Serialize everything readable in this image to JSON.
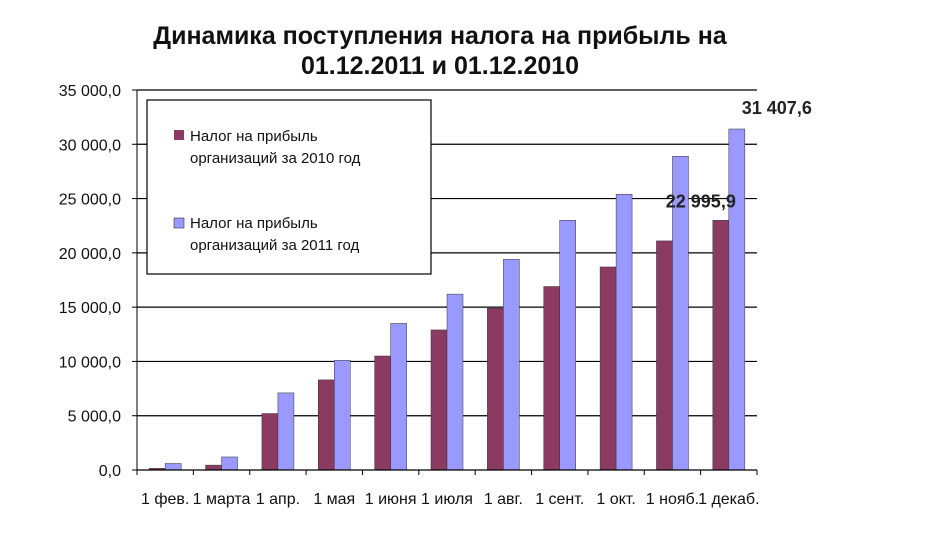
{
  "chart_data": {
    "type": "bar",
    "title_line1": "Динамика поступления налога на прибыль на",
    "title_line2": "01.12.2011 и 01.12.2010",
    "xlabel": "",
    "ylabel": "",
    "ylim": [
      0,
      35000
    ],
    "yticks": [
      {
        "value": 0,
        "label": "0,0"
      },
      {
        "value": 5000,
        "label": "5 000,0"
      },
      {
        "value": 10000,
        "label": "10 000,0"
      },
      {
        "value": 15000,
        "label": "15 000,0"
      },
      {
        "value": 20000,
        "label": "20 000,0"
      },
      {
        "value": 25000,
        "label": "25 000,0"
      },
      {
        "value": 30000,
        "label": "30 000,0"
      },
      {
        "value": 35000,
        "label": "35 000,0"
      }
    ],
    "categories": [
      "1 фев.",
      "1 марта",
      "1 апр.",
      "1 мая",
      "1 июня",
      "1 июля",
      "1 авг.",
      "1 сент.",
      "1 окт.",
      "1 нояб.",
      "1 декаб."
    ],
    "series": [
      {
        "name": "Налог на прибыль организаций за 2010 год",
        "color": "#8b3a62",
        "values": [
          150,
          450,
          5200,
          8300,
          10500,
          12900,
          14900,
          16900,
          18700,
          21100,
          22996
        ]
      },
      {
        "name": "Налог на прибыль организаций за 2011 год",
        "color": "#9999ff",
        "values": [
          600,
          1200,
          7100,
          10100,
          13500,
          16200,
          19400,
          23000,
          25400,
          28900,
          31408
        ]
      }
    ],
    "legend": {
      "position": "top-left inside plot",
      "line1_2010": "Налог на прибыль",
      "line2_2010": "организаций за 2010 год",
      "line1_2011": "Налог на прибыль",
      "line2_2011": "организаций за 2011 год"
    },
    "annotations": [
      {
        "text": "22 995,9",
        "series": 0,
        "category": 10
      },
      {
        "text": "31 407,6",
        "series": 1,
        "category": 10
      }
    ],
    "grid": "horizontal major gridlines"
  }
}
